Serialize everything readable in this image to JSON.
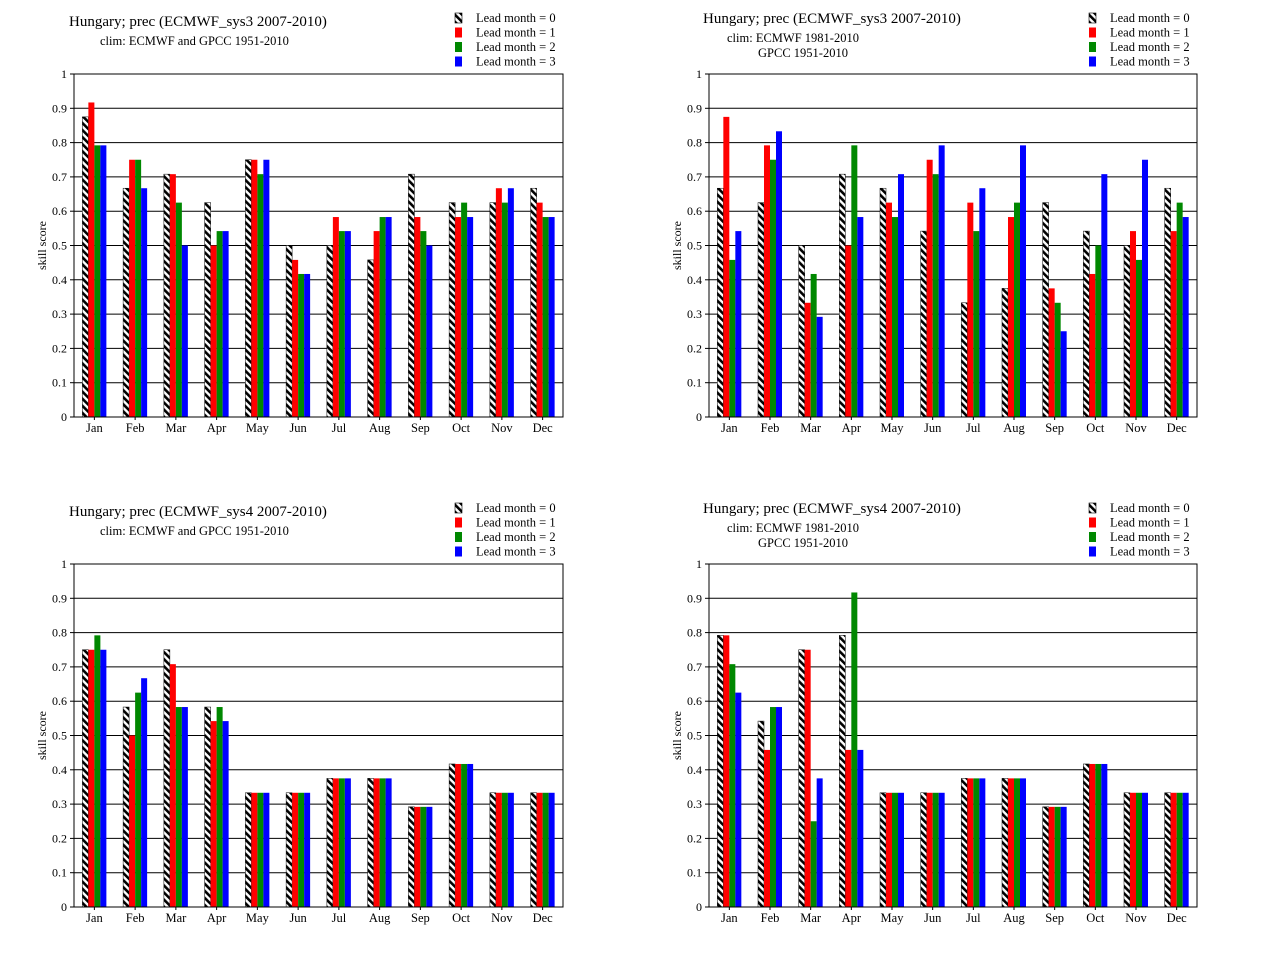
{
  "chart_data": [
    {
      "type": "bar",
      "title": "Hungary; prec (ECMWF_sys3 2007-2010)",
      "subtitle": [
        "clim: ECMWF and GPCC 1951-2010"
      ],
      "ylabel": "skill  score",
      "ylim": [
        0,
        1
      ],
      "yticks": [
        "0",
        "0.1",
        "0.2",
        "0.3",
        "0.4",
        "0.5",
        "0.6",
        "0.7",
        "0.8",
        "0.9",
        "1"
      ],
      "grid": true,
      "legend": "top-right",
      "categories": [
        "Jan",
        "Feb",
        "Mar",
        "Apr",
        "May",
        "Jun",
        "Jul",
        "Aug",
        "Sep",
        "Oct",
        "Nov",
        "Dec"
      ],
      "series": [
        {
          "name": "Lead month = 0",
          "color": "hatch",
          "values": [
            0.875,
            0.667,
            0.708,
            0.625,
            0.75,
            0.5,
            0.5,
            0.458,
            0.708,
            0.625,
            0.625,
            0.667
          ]
        },
        {
          "name": "Lead month = 1",
          "color": "#ff0000",
          "values": [
            0.917,
            0.75,
            0.708,
            0.5,
            0.75,
            0.458,
            0.583,
            0.542,
            0.583,
            0.583,
            0.667,
            0.625
          ]
        },
        {
          "name": "Lead month = 2",
          "color": "#008800",
          "values": [
            0.792,
            0.75,
            0.625,
            0.542,
            0.708,
            0.417,
            0.542,
            0.583,
            0.542,
            0.625,
            0.625,
            0.583
          ]
        },
        {
          "name": "Lead month = 3",
          "color": "#0000ff",
          "values": [
            0.792,
            0.667,
            0.5,
            0.542,
            0.75,
            0.417,
            0.542,
            0.583,
            0.5,
            0.583,
            0.667,
            0.583
          ]
        }
      ]
    },
    {
      "type": "bar",
      "title": "Hungary; prec (ECMWF_sys3 2007-2010)",
      "subtitle": [
        "clim: ECMWF 1981-2010",
        "GPCC 1951-2010"
      ],
      "ylabel": "skill  score",
      "ylim": [
        0,
        1
      ],
      "yticks": [
        "0",
        "0.1",
        "0.2",
        "0.3",
        "0.4",
        "0.5",
        "0.6",
        "0.7",
        "0.8",
        "0.9",
        "1"
      ],
      "grid": true,
      "legend": "top-right",
      "categories": [
        "Jan",
        "Feb",
        "Mar",
        "Apr",
        "May",
        "Jun",
        "Jul",
        "Aug",
        "Sep",
        "Oct",
        "Nov",
        "Dec"
      ],
      "series": [
        {
          "name": "Lead month = 0",
          "color": "hatch",
          "values": [
            0.667,
            0.625,
            0.5,
            0.708,
            0.667,
            0.542,
            0.333,
            0.375,
            0.625,
            0.542,
            0.5,
            0.667
          ]
        },
        {
          "name": "Lead month = 1",
          "color": "#ff0000",
          "values": [
            0.875,
            0.792,
            0.333,
            0.5,
            0.625,
            0.75,
            0.625,
            0.583,
            0.375,
            0.417,
            0.542,
            0.542
          ]
        },
        {
          "name": "Lead month = 2",
          "color": "#008800",
          "values": [
            0.458,
            0.75,
            0.417,
            0.792,
            0.583,
            0.708,
            0.542,
            0.625,
            0.333,
            0.5,
            0.458,
            0.625
          ]
        },
        {
          "name": "Lead month = 3",
          "color": "#0000ff",
          "values": [
            0.542,
            0.833,
            0.292,
            0.583,
            0.708,
            0.792,
            0.667,
            0.792,
            0.25,
            0.708,
            0.75,
            0.583
          ]
        }
      ]
    },
    {
      "type": "bar",
      "title": "Hungary; prec (ECMWF_sys4 2007-2010)",
      "subtitle": [
        "clim: ECMWF and GPCC 1951-2010"
      ],
      "ylabel": "skill  score",
      "ylim": [
        0,
        1
      ],
      "yticks": [
        "0",
        "0.1",
        "0.2",
        "0.3",
        "0.4",
        "0.5",
        "0.6",
        "0.7",
        "0.8",
        "0.9",
        "1"
      ],
      "grid": true,
      "legend": "top-right",
      "categories": [
        "Jan",
        "Feb",
        "Mar",
        "Apr",
        "May",
        "Jun",
        "Jul",
        "Aug",
        "Sep",
        "Oct",
        "Nov",
        "Dec"
      ],
      "series": [
        {
          "name": "Lead month = 0",
          "color": "hatch",
          "values": [
            0.75,
            0.583,
            0.75,
            0.583,
            0.333,
            0.333,
            0.375,
            0.375,
            0.292,
            0.417,
            0.333,
            0.333
          ]
        },
        {
          "name": "Lead month = 1",
          "color": "#ff0000",
          "values": [
            0.75,
            0.5,
            0.708,
            0.542,
            0.333,
            0.333,
            0.375,
            0.375,
            0.292,
            0.417,
            0.333,
            0.333
          ]
        },
        {
          "name": "Lead month = 2",
          "color": "#008800",
          "values": [
            0.792,
            0.625,
            0.583,
            0.583,
            0.333,
            0.333,
            0.375,
            0.375,
            0.292,
            0.417,
            0.333,
            0.333
          ]
        },
        {
          "name": "Lead month = 3",
          "color": "#0000ff",
          "values": [
            0.75,
            0.667,
            0.583,
            0.542,
            0.333,
            0.333,
            0.375,
            0.375,
            0.292,
            0.417,
            0.333,
            0.333
          ]
        }
      ]
    },
    {
      "type": "bar",
      "title": "Hungary; prec (ECMWF_sys4 2007-2010)",
      "subtitle": [
        "clim: ECMWF 1981-2010",
        "GPCC 1951-2010"
      ],
      "ylabel": "skill  score",
      "ylim": [
        0,
        1
      ],
      "yticks": [
        "0",
        "0.1",
        "0.2",
        "0.3",
        "0.4",
        "0.5",
        "0.6",
        "0.7",
        "0.8",
        "0.9",
        "1"
      ],
      "grid": true,
      "legend": "top-right",
      "categories": [
        "Jan",
        "Feb",
        "Mar",
        "Apr",
        "May",
        "Jun",
        "Jul",
        "Aug",
        "Sep",
        "Oct",
        "Nov",
        "Dec"
      ],
      "series": [
        {
          "name": "Lead month = 0",
          "color": "hatch",
          "values": [
            0.792,
            0.542,
            0.75,
            0.792,
            0.333,
            0.333,
            0.375,
            0.375,
            0.292,
            0.417,
            0.333,
            0.333
          ]
        },
        {
          "name": "Lead month = 1",
          "color": "#ff0000",
          "values": [
            0.792,
            0.458,
            0.75,
            0.458,
            0.333,
            0.333,
            0.375,
            0.375,
            0.292,
            0.417,
            0.333,
            0.333
          ]
        },
        {
          "name": "Lead month = 2",
          "color": "#008800",
          "values": [
            0.708,
            0.583,
            0.25,
            0.917,
            0.333,
            0.333,
            0.375,
            0.375,
            0.292,
            0.417,
            0.333,
            0.333
          ]
        },
        {
          "name": "Lead month = 3",
          "color": "#0000ff",
          "values": [
            0.625,
            0.583,
            0.375,
            0.458,
            0.333,
            0.333,
            0.375,
            0.375,
            0.292,
            0.417,
            0.333,
            0.333
          ]
        }
      ]
    }
  ]
}
